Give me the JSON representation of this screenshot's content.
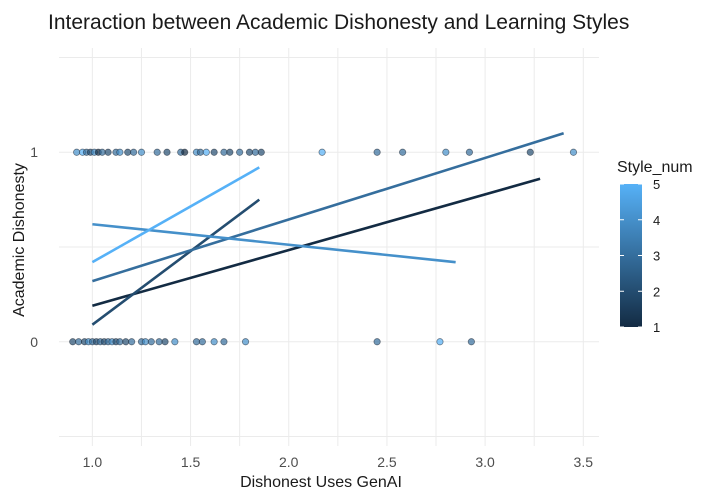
{
  "chart_data": {
    "type": "scatter",
    "title": "Interaction between Academic Dishonesty and Learning Styles",
    "xlabel": "Dishonest Uses GenAI",
    "ylabel": "Academic Dishonesty",
    "xlim": [
      0.83,
      3.58
    ],
    "ylim": [
      -0.55,
      1.55
    ],
    "x_ticks": [
      "1.0",
      "1.5",
      "2.0",
      "2.5",
      "3.0",
      "3.5"
    ],
    "x_tick_values": [
      1.0,
      1.5,
      2.0,
      2.5,
      3.0,
      3.5
    ],
    "y_ticks": [
      "0",
      "1"
    ],
    "y_tick_values": [
      0,
      1
    ],
    "grid": true,
    "legend": {
      "title": "Style_num",
      "position": "right",
      "range": [
        1,
        5
      ],
      "ticks": [
        "1",
        "2",
        "3",
        "4",
        "5"
      ],
      "tick_values": [
        1,
        2,
        3,
        4,
        5
      ],
      "color_low": "#132b43",
      "color_high": "#56b1f7"
    },
    "points": [
      {
        "x": 0.92,
        "y": 1,
        "s": 4
      },
      {
        "x": 0.95,
        "y": 1,
        "s": 5
      },
      {
        "x": 0.97,
        "y": 1,
        "s": 3
      },
      {
        "x": 0.99,
        "y": 1,
        "s": 2
      },
      {
        "x": 1.01,
        "y": 1,
        "s": 4
      },
      {
        "x": 1.03,
        "y": 1,
        "s": 1
      },
      {
        "x": 1.05,
        "y": 1,
        "s": 3
      },
      {
        "x": 1.08,
        "y": 1,
        "s": 2
      },
      {
        "x": 1.12,
        "y": 1,
        "s": 3
      },
      {
        "x": 1.14,
        "y": 1,
        "s": 4
      },
      {
        "x": 1.18,
        "y": 1,
        "s": 2
      },
      {
        "x": 1.21,
        "y": 1,
        "s": 3
      },
      {
        "x": 1.25,
        "y": 1,
        "s": 4
      },
      {
        "x": 1.33,
        "y": 1,
        "s": 3
      },
      {
        "x": 1.38,
        "y": 1,
        "s": 2
      },
      {
        "x": 1.45,
        "y": 1,
        "s": 3
      },
      {
        "x": 1.47,
        "y": 1,
        "s": 1
      },
      {
        "x": 1.53,
        "y": 1,
        "s": 4
      },
      {
        "x": 1.55,
        "y": 1,
        "s": 3
      },
      {
        "x": 1.58,
        "y": 1,
        "s": 5
      },
      {
        "x": 1.62,
        "y": 1,
        "s": 2
      },
      {
        "x": 1.67,
        "y": 1,
        "s": 3
      },
      {
        "x": 1.7,
        "y": 1,
        "s": 2
      },
      {
        "x": 1.75,
        "y": 1,
        "s": 3
      },
      {
        "x": 1.8,
        "y": 1,
        "s": 2
      },
      {
        "x": 1.83,
        "y": 1,
        "s": 3
      },
      {
        "x": 1.86,
        "y": 1,
        "s": 2
      },
      {
        "x": 2.17,
        "y": 1,
        "s": 5
      },
      {
        "x": 2.45,
        "y": 1,
        "s": 3
      },
      {
        "x": 2.58,
        "y": 1,
        "s": 3
      },
      {
        "x": 2.8,
        "y": 1,
        "s": 4
      },
      {
        "x": 2.92,
        "y": 1,
        "s": 3
      },
      {
        "x": 3.23,
        "y": 1,
        "s": 2
      },
      {
        "x": 3.45,
        "y": 1,
        "s": 4
      },
      {
        "x": 0.9,
        "y": 0,
        "s": 2
      },
      {
        "x": 0.93,
        "y": 0,
        "s": 3
      },
      {
        "x": 0.96,
        "y": 0,
        "s": 2
      },
      {
        "x": 0.98,
        "y": 0,
        "s": 4
      },
      {
        "x": 1.0,
        "y": 0,
        "s": 3
      },
      {
        "x": 1.02,
        "y": 0,
        "s": 2
      },
      {
        "x": 1.04,
        "y": 0,
        "s": 3
      },
      {
        "x": 1.06,
        "y": 0,
        "s": 2
      },
      {
        "x": 1.08,
        "y": 0,
        "s": 3
      },
      {
        "x": 1.1,
        "y": 0,
        "s": 4
      },
      {
        "x": 1.12,
        "y": 0,
        "s": 2
      },
      {
        "x": 1.14,
        "y": 0,
        "s": 3
      },
      {
        "x": 1.17,
        "y": 0,
        "s": 2
      },
      {
        "x": 1.2,
        "y": 0,
        "s": 3
      },
      {
        "x": 1.25,
        "y": 0,
        "s": 3
      },
      {
        "x": 1.27,
        "y": 0,
        "s": 4
      },
      {
        "x": 1.3,
        "y": 0,
        "s": 3
      },
      {
        "x": 1.34,
        "y": 0,
        "s": 3
      },
      {
        "x": 1.37,
        "y": 0,
        "s": 2
      },
      {
        "x": 1.42,
        "y": 0,
        "s": 4
      },
      {
        "x": 1.53,
        "y": 0,
        "s": 3
      },
      {
        "x": 1.56,
        "y": 0,
        "s": 3
      },
      {
        "x": 1.62,
        "y": 0,
        "s": 4
      },
      {
        "x": 1.67,
        "y": 0,
        "s": 3
      },
      {
        "x": 1.78,
        "y": 0,
        "s": 4
      },
      {
        "x": 2.45,
        "y": 0,
        "s": 3
      },
      {
        "x": 2.77,
        "y": 0,
        "s": 5
      },
      {
        "x": 2.93,
        "y": 0,
        "s": 3
      }
    ],
    "series": [
      {
        "style": 1,
        "x": [
          1.0,
          3.28
        ],
        "y": [
          0.19,
          0.86
        ]
      },
      {
        "style": 2,
        "x": [
          1.0,
          1.85
        ],
        "y": [
          0.09,
          0.75
        ]
      },
      {
        "style": 3,
        "x": [
          1.0,
          3.4
        ],
        "y": [
          0.32,
          1.1
        ]
      },
      {
        "style": 4,
        "x": [
          1.0,
          2.85
        ],
        "y": [
          0.62,
          0.42
        ]
      },
      {
        "style": 5,
        "x": [
          1.0,
          1.85
        ],
        "y": [
          0.42,
          0.92
        ]
      }
    ]
  }
}
